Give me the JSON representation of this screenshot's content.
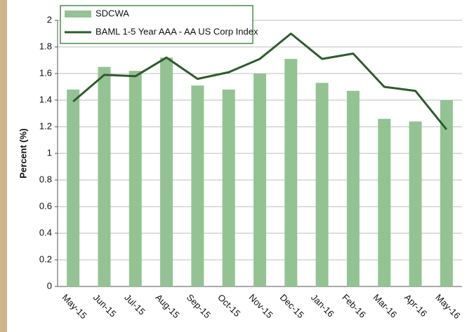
{
  "chart_data": {
    "type": "combo",
    "y_label": "Percent (%)",
    "categories": [
      "May-15",
      "Jun-15",
      "Jul-15",
      "Aug-15",
      "Sep-15",
      "Oct-15",
      "Nov-15",
      "Dec-15",
      "Jan-16",
      "Feb-16",
      "Mar-16",
      "Apr-16",
      "May-16"
    ],
    "series": [
      {
        "name": "SDCWA",
        "type": "bar",
        "color": "#93c393",
        "values": [
          1.48,
          1.65,
          1.62,
          1.72,
          1.51,
          1.48,
          1.6,
          1.71,
          1.53,
          1.47,
          1.26,
          1.24,
          1.4
        ]
      },
      {
        "name": "BAML 1-5 Year AAA - AA US Corp Index",
        "type": "line",
        "color": "#2f5b2f",
        "values": [
          1.39,
          1.59,
          1.58,
          1.72,
          1.56,
          1.61,
          1.71,
          1.9,
          1.71,
          1.75,
          1.5,
          1.47,
          1.18
        ]
      }
    ],
    "ylim": [
      0,
      2
    ],
    "yticks": [
      0,
      0.2,
      0.4,
      0.6,
      0.8,
      1,
      1.2,
      1.4,
      1.6,
      1.8,
      2
    ],
    "grid": true,
    "legend": "top-left"
  }
}
